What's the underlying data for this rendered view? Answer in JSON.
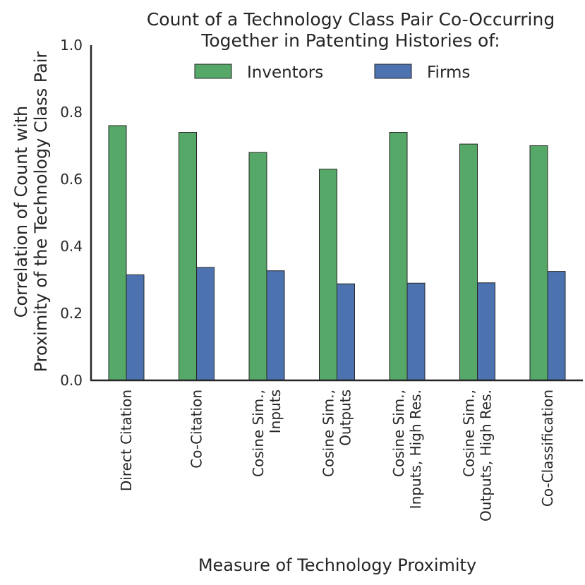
{
  "chart_data": {
    "type": "bar",
    "title_lines": [
      "Count of a Technology Class Pair Co-Occurring",
      "Together in Patenting Histories of:"
    ],
    "xlabel": "Measure of Technology Proximity",
    "ylabel_lines": [
      "Correlation of Count with",
      "Proximity of the Technology Class Pair"
    ],
    "ylim": [
      0.0,
      1.0
    ],
    "yticks": [
      "0.0",
      "0.2",
      "0.4",
      "0.6",
      "0.8",
      "1.0"
    ],
    "grid": false,
    "legend_position": "top-center",
    "categories": [
      [
        "Direct Citation"
      ],
      [
        "Co-Citation"
      ],
      [
        "Cosine Sim.,",
        "Inputs"
      ],
      [
        "Cosine Sim.,",
        "Outputs"
      ],
      [
        "Cosine Sim.,",
        "Inputs, High Res."
      ],
      [
        "Cosine Sim.,",
        "Outputs, High Res."
      ],
      [
        "Co-Classification"
      ]
    ],
    "series": [
      {
        "name": "Inventors",
        "color": "#55a868",
        "values": [
          0.76,
          0.74,
          0.68,
          0.63,
          0.74,
          0.705,
          0.7
        ]
      },
      {
        "name": "Firms",
        "color": "#4c72b0",
        "values": [
          0.315,
          0.337,
          0.327,
          0.288,
          0.29,
          0.291,
          0.325
        ]
      }
    ]
  }
}
